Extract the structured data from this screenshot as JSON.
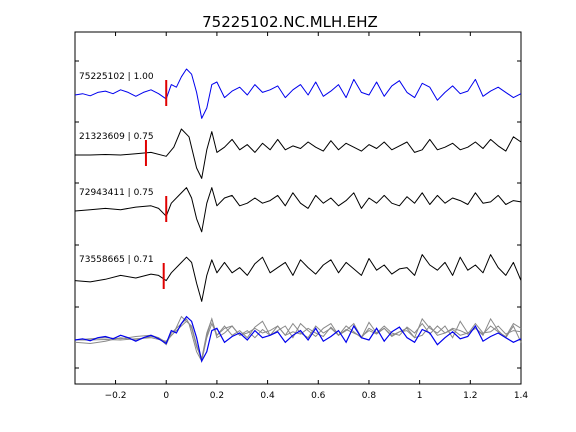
{
  "chart_data": {
    "type": "line",
    "title": "75225102.NC.MLH.EHZ",
    "xlabel": "",
    "ylabel": "",
    "xlim": [
      -0.36,
      1.4
    ],
    "x_ticks": [
      -0.2,
      0,
      0.2,
      0.4,
      0.6,
      0.8,
      1,
      1.2,
      1.4
    ],
    "x_tick_labels": [
      "−0.2",
      "0",
      "0.2",
      "0.4",
      "0.6",
      "0.8",
      "1",
      "1.2",
      "1.4"
    ],
    "y_tick_count": 6,
    "grid": false,
    "pick_color": "#e00000",
    "reference_color": "#0000ee",
    "trace_color": "#000000",
    "overlay_color": "#8a8a8a",
    "series": [
      {
        "name": "75225102 | 1.00",
        "pick_time": 0.0,
        "color": "#0000ee",
        "x": [
          -0.36,
          -0.33,
          -0.3,
          -0.27,
          -0.24,
          -0.21,
          -0.18,
          -0.15,
          -0.12,
          -0.09,
          -0.06,
          -0.03,
          0.0,
          0.02,
          0.04,
          0.06,
          0.08,
          0.1,
          0.12,
          0.14,
          0.16,
          0.18,
          0.2,
          0.23,
          0.26,
          0.29,
          0.32,
          0.35,
          0.38,
          0.41,
          0.44,
          0.47,
          0.5,
          0.53,
          0.56,
          0.59,
          0.62,
          0.65,
          0.68,
          0.71,
          0.74,
          0.77,
          0.8,
          0.83,
          0.86,
          0.89,
          0.92,
          0.95,
          0.98,
          1.01,
          1.04,
          1.07,
          1.1,
          1.13,
          1.16,
          1.19,
          1.22,
          1.25,
          1.28,
          1.31,
          1.34,
          1.37,
          1.4
        ],
        "y": [
          0.0,
          0.05,
          -0.03,
          0.1,
          0.15,
          0.05,
          0.2,
          0.1,
          -0.05,
          0.1,
          0.2,
          0.05,
          -0.15,
          0.4,
          0.3,
          0.7,
          1.0,
          0.8,
          0.1,
          -0.9,
          -0.5,
          0.4,
          0.5,
          -0.1,
          0.15,
          0.3,
          0.0,
          0.4,
          0.1,
          0.2,
          0.35,
          -0.1,
          0.2,
          0.4,
          0.0,
          0.5,
          -0.05,
          0.15,
          0.4,
          -0.1,
          0.6,
          0.1,
          0.0,
          0.5,
          -0.05,
          0.35,
          0.55,
          0.1,
          -0.1,
          0.45,
          0.3,
          -0.2,
          0.1,
          0.35,
          0.05,
          0.15,
          0.6,
          -0.05,
          0.15,
          0.3,
          0.1,
          -0.1,
          0.05
        ]
      },
      {
        "name": "21323609 | 0.75",
        "pick_time": -0.08,
        "color": "#000000",
        "x": [
          -0.36,
          -0.3,
          -0.24,
          -0.18,
          -0.12,
          -0.06,
          0.0,
          0.03,
          0.06,
          0.09,
          0.12,
          0.14,
          0.16,
          0.18,
          0.2,
          0.23,
          0.26,
          0.29,
          0.32,
          0.35,
          0.38,
          0.41,
          0.44,
          0.47,
          0.5,
          0.53,
          0.56,
          0.59,
          0.62,
          0.65,
          0.68,
          0.71,
          0.74,
          0.77,
          0.8,
          0.83,
          0.86,
          0.89,
          0.92,
          0.95,
          0.98,
          1.01,
          1.04,
          1.07,
          1.1,
          1.13,
          1.16,
          1.19,
          1.22,
          1.25,
          1.28,
          1.31,
          1.34,
          1.37,
          1.4
        ],
        "y": [
          0.0,
          0.0,
          0.02,
          0.0,
          0.05,
          0.1,
          -0.05,
          0.3,
          1.0,
          0.7,
          -0.5,
          -0.9,
          0.2,
          0.9,
          0.1,
          0.3,
          0.6,
          0.2,
          0.4,
          0.1,
          0.45,
          0.2,
          0.6,
          0.2,
          0.35,
          0.25,
          0.5,
          0.3,
          0.15,
          0.55,
          0.2,
          0.45,
          0.3,
          0.15,
          0.4,
          0.25,
          0.5,
          0.2,
          0.35,
          0.5,
          0.1,
          0.2,
          0.6,
          0.2,
          0.3,
          0.45,
          0.2,
          0.3,
          0.5,
          0.25,
          0.6,
          0.35,
          0.15,
          0.7,
          0.5
        ]
      },
      {
        "name": "72943411 | 0.75",
        "pick_time": 0.0,
        "color": "#000000",
        "x": [
          -0.36,
          -0.3,
          -0.24,
          -0.18,
          -0.12,
          -0.06,
          -0.03,
          0.0,
          0.02,
          0.05,
          0.08,
          0.1,
          0.12,
          0.14,
          0.16,
          0.18,
          0.2,
          0.23,
          0.26,
          0.29,
          0.32,
          0.35,
          0.38,
          0.41,
          0.44,
          0.47,
          0.5,
          0.53,
          0.56,
          0.59,
          0.62,
          0.65,
          0.68,
          0.71,
          0.74,
          0.77,
          0.8,
          0.83,
          0.86,
          0.89,
          0.92,
          0.95,
          0.98,
          1.01,
          1.04,
          1.07,
          1.1,
          1.13,
          1.16,
          1.19,
          1.22,
          1.25,
          1.28,
          1.31,
          1.34,
          1.37,
          1.4
        ],
        "y": [
          0.0,
          0.05,
          0.1,
          0.05,
          0.15,
          0.2,
          0.1,
          -0.2,
          0.3,
          0.6,
          0.9,
          0.5,
          -0.3,
          -0.8,
          0.3,
          0.9,
          0.2,
          0.5,
          0.6,
          0.2,
          0.3,
          0.5,
          0.3,
          0.4,
          0.6,
          0.2,
          0.7,
          0.3,
          0.1,
          0.6,
          0.3,
          0.5,
          0.2,
          0.4,
          0.7,
          0.1,
          0.5,
          0.3,
          0.6,
          0.3,
          0.2,
          0.55,
          0.3,
          0.7,
          0.25,
          0.6,
          0.3,
          0.5,
          0.4,
          0.25,
          0.7,
          0.3,
          0.35,
          0.6,
          0.25,
          0.4,
          0.35
        ]
      },
      {
        "name": "73558665 | 0.71",
        "pick_time": -0.01,
        "color": "#000000",
        "x": [
          -0.36,
          -0.3,
          -0.24,
          -0.18,
          -0.12,
          -0.06,
          -0.03,
          0.0,
          0.02,
          0.05,
          0.08,
          0.1,
          0.12,
          0.14,
          0.16,
          0.18,
          0.2,
          0.23,
          0.26,
          0.29,
          0.32,
          0.35,
          0.38,
          0.41,
          0.44,
          0.47,
          0.5,
          0.53,
          0.56,
          0.59,
          0.62,
          0.65,
          0.68,
          0.71,
          0.74,
          0.77,
          0.8,
          0.83,
          0.86,
          0.89,
          0.92,
          0.95,
          0.98,
          1.01,
          1.04,
          1.07,
          1.1,
          1.13,
          1.16,
          1.19,
          1.22,
          1.25,
          1.28,
          1.31,
          1.34,
          1.37,
          1.4
        ],
        "y": [
          -0.1,
          -0.15,
          -0.05,
          0.1,
          0.0,
          0.15,
          0.1,
          -0.1,
          0.2,
          0.5,
          0.8,
          0.6,
          -0.2,
          -0.9,
          0.1,
          0.7,
          0.2,
          0.6,
          0.2,
          0.4,
          0.1,
          0.55,
          0.8,
          0.2,
          0.4,
          0.6,
          0.1,
          0.7,
          0.4,
          0.15,
          0.5,
          0.7,
          0.2,
          0.6,
          0.35,
          0.1,
          0.75,
          0.3,
          0.5,
          0.15,
          0.35,
          0.4,
          0.1,
          0.9,
          0.5,
          0.3,
          0.6,
          0.1,
          0.8,
          0.3,
          0.5,
          0.2,
          0.9,
          0.4,
          0.1,
          0.6,
          -0.1
        ]
      }
    ],
    "overlay": {
      "offset_index": 4,
      "note": "bottom row overlays the reference trace (blue) and aligned traces (grey)"
    }
  }
}
